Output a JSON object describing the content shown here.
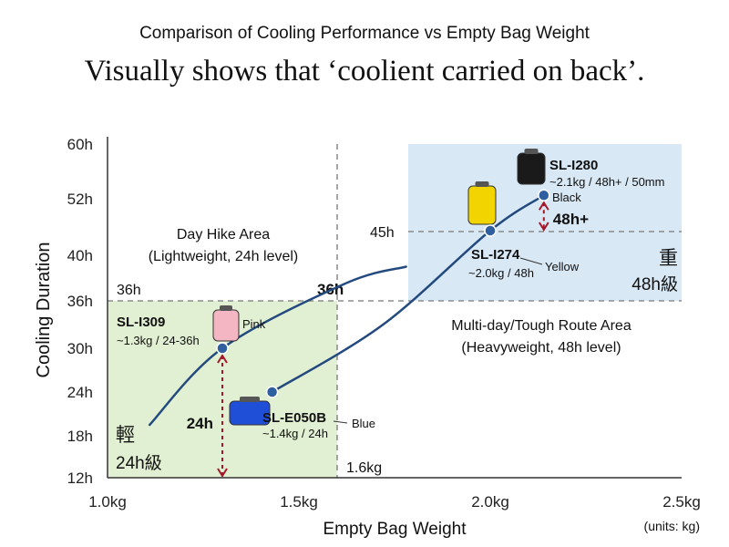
{
  "chart_data": {
    "type": "line",
    "title": "Comparison of Cooling Performance vs Empty Bag Weight",
    "subtitle": "Visually shows that ‘coolient carried on back’.",
    "xlabel": "Empty Bag Weight",
    "ylabel": "Cooling Duration",
    "units_note": "(units: kg)",
    "xlim": [
      1.0,
      2.5
    ],
    "ylim": [
      12,
      60
    ],
    "x_ticks": [
      {
        "value": 1.0,
        "label": "1.0kg"
      },
      {
        "value": 1.5,
        "label": "1.5kg"
      },
      {
        "value": 2.0,
        "label": "2.0kg"
      },
      {
        "value": 2.5,
        "label": "2.5kg"
      }
    ],
    "y_ticks": [
      {
        "value": 12,
        "label": "12h"
      },
      {
        "value": 18,
        "label": "18h"
      },
      {
        "value": 24,
        "label": "24h"
      },
      {
        "value": 30,
        "label": "30h"
      },
      {
        "value": 36,
        "label": "36h"
      },
      {
        "value": 40,
        "label": "40h"
      },
      {
        "value": 52,
        "label": "52h"
      },
      {
        "value": 60,
        "label": "60h"
      }
    ],
    "regions": {
      "light": {
        "title": "Day Hike Area",
        "subtitle": "(Lightweight, 24h level)",
        "kanji": "輕",
        "grade": "24h級",
        "color": "#e1efd2"
      },
      "heavy": {
        "title": "Multi-day/Tough Route Area",
        "subtitle": "(Heavyweight, 48h level)",
        "kanji": "重",
        "grade": "48h級",
        "color": "#d8e8f5"
      }
    },
    "reference_lines": {
      "h36_left": "36h",
      "h36_mid": "36h",
      "h45": "45h",
      "v16": "1.6kg"
    },
    "series": [
      {
        "points": [
          {
            "x": 1.11,
            "y": 19.5
          },
          {
            "x": 1.3,
            "y": 30
          },
          {
            "x": 1.62,
            "y": 37.5
          },
          {
            "x": 1.78,
            "y": 39
          }
        ]
      },
      {
        "points": [
          {
            "x": 1.43,
            "y": 24
          },
          {
            "x": 1.72,
            "y": 33
          },
          {
            "x": 2.0,
            "y": 45.2
          },
          {
            "x": 2.14,
            "y": 52.5
          }
        ]
      }
    ],
    "products": [
      {
        "name": "SL-I309",
        "detail": "~1.3kg / 24-36h",
        "color_name": "Pink",
        "color": "#f4b6c2",
        "x": 1.3,
        "y": 30
      },
      {
        "name": "SL-E050B",
        "detail": "~1.4kg / 24h",
        "color_name": "Blue",
        "color": "#1f4fd6",
        "x": 1.43,
        "y": 24
      },
      {
        "name": "SL-I274",
        "detail": "~2.0kg / 48h",
        "color_name": "Yellow",
        "color": "#f2d400",
        "x": 2.0,
        "y": 45.2
      },
      {
        "name": "SL-I280",
        "detail": "~2.1kg / 48h+ / 50mm",
        "color_name": "Black",
        "color": "#1a1a1a",
        "x": 2.14,
        "y": 52.5
      }
    ],
    "annotations": {
      "gap_24h": "24h",
      "gap_48h": "48h+"
    },
    "colors": {
      "curve": "#234a7e",
      "marker": "#2f5f9e",
      "accent_red": "#a3192a",
      "ref_gray": "#8c8c8c"
    }
  }
}
